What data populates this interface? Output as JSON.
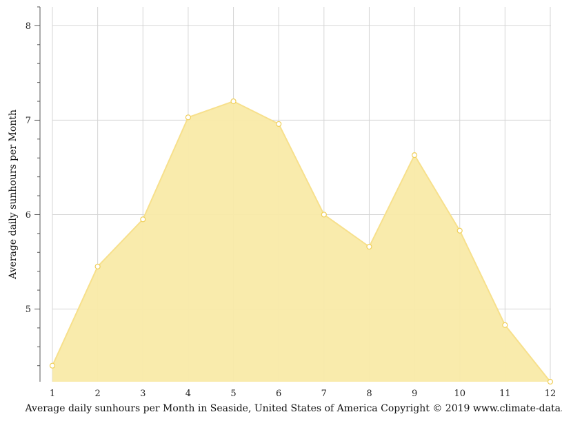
{
  "chart_data": {
    "type": "area",
    "x": [
      1,
      2,
      3,
      4,
      5,
      6,
      7,
      8,
      9,
      10,
      11,
      12
    ],
    "values": [
      4.4,
      5.45,
      5.95,
      7.03,
      7.2,
      6.96,
      6.0,
      5.66,
      6.63,
      5.83,
      4.83,
      4.23
    ],
    "ylabel": "Average daily sunhours per Month",
    "xlabel": "Average daily sunhours per Month in Seaside, United States of America Copyright © 2019 www.climate-data.org",
    "x_ticks": [
      "1",
      "2",
      "3",
      "4",
      "5",
      "6",
      "7",
      "8",
      "9",
      "10",
      "11",
      "12"
    ],
    "y_ticks": [
      "5",
      "6",
      "7",
      "8"
    ],
    "ylim": [
      4.23,
      8.2
    ],
    "xlim": [
      1,
      12
    ],
    "grid": true,
    "colors": {
      "fill": "#f9eaa8",
      "line": "#f7e08c",
      "marker_fill": "#ffffff",
      "marker_stroke": "#f0cf5a",
      "grid": "#d4d4d4",
      "axis": "#555555"
    }
  }
}
